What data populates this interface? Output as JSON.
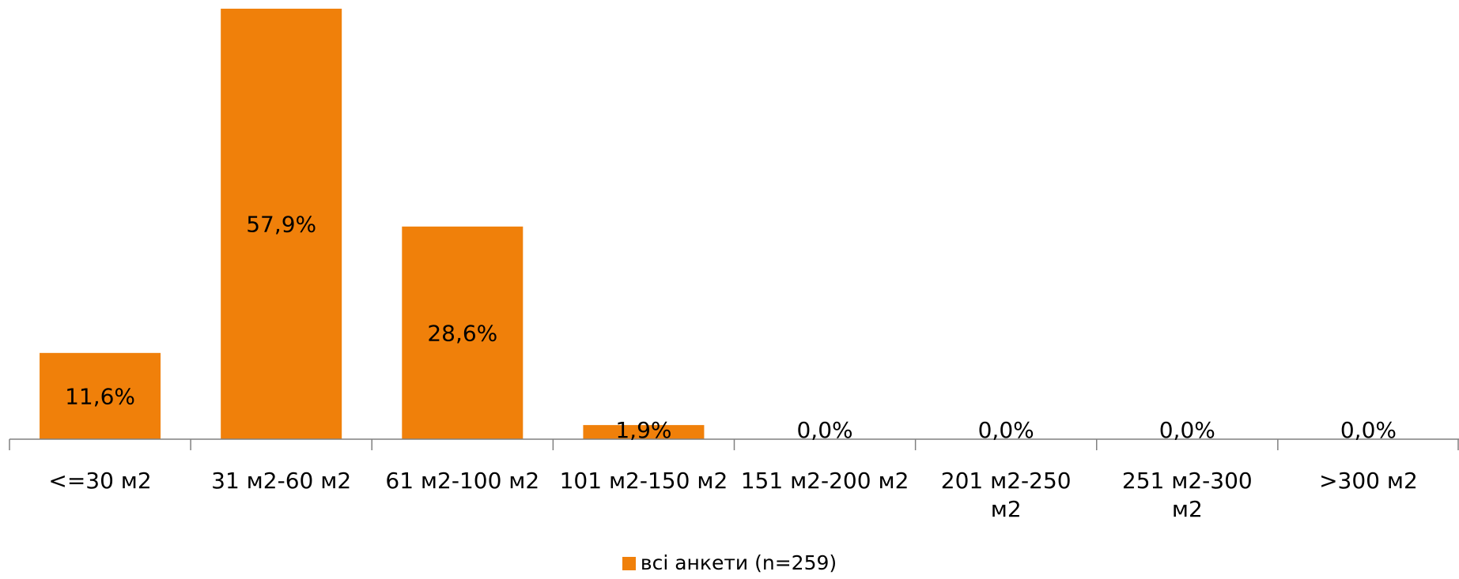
{
  "chart_data": {
    "type": "bar",
    "categories": [
      "<=30 м2",
      "31 м2-60 м2",
      "61 м2-100 м2",
      "101 м2-150 м2",
      "151 м2-200 м2",
      "201 м2-250 м2",
      "251 м2-300 м2",
      ">300 м2"
    ],
    "series": [
      {
        "name": "всі анкети (n=259)",
        "values": [
          11.6,
          57.9,
          28.6,
          1.9,
          0.0,
          0.0,
          0.0,
          0.0
        ],
        "labels": [
          "11,6%",
          "57,9%",
          "28,6%",
          "1,9%",
          "0,0%",
          "0,0%",
          "0,0%",
          "0,0%"
        ],
        "color": "#F0800A"
      }
    ],
    "title": "",
    "xlabel": "",
    "ylabel": "",
    "ylim": [
      0,
      57.9
    ],
    "grid": false,
    "legend_position": "bottom"
  }
}
